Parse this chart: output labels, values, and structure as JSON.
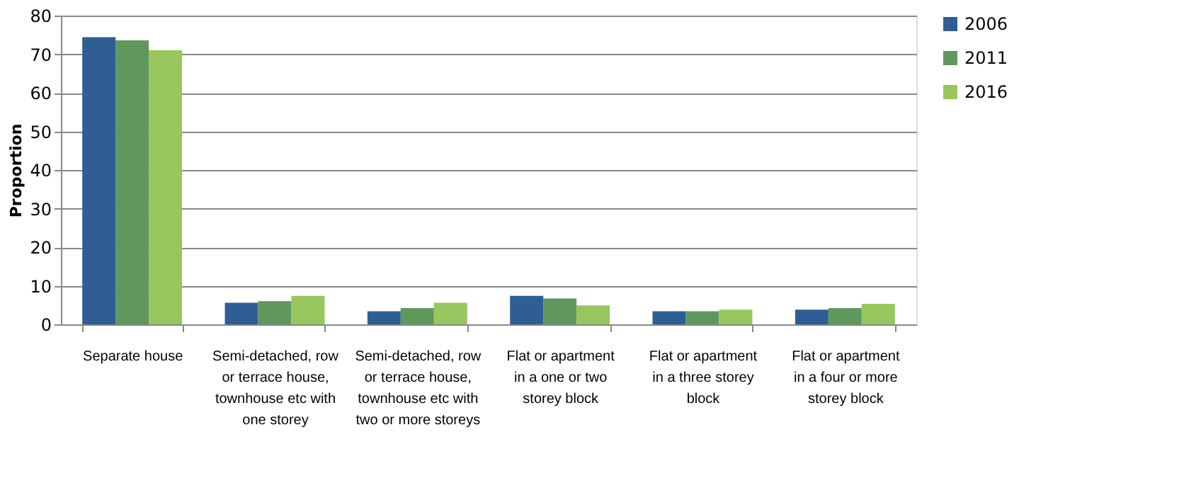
{
  "chart_data": {
    "type": "bar",
    "ylabel": "Proportion",
    "categories": [
      "Separate house",
      "Semi-detached, row or terrace house, townhouse etc with one storey",
      "Semi-detached, row or terrace house, townhouse etc with two or more storeys",
      "Flat or apartment in a one or two storey block",
      "Flat or apartment in a three storey block",
      "Flat or apartment in a four or more storey block"
    ],
    "series": [
      {
        "name": "2006",
        "color": "#2e5e93",
        "values": [
          74.4,
          5.6,
          3.4,
          7.4,
          3.4,
          3.8
        ]
      },
      {
        "name": "2011",
        "color": "#5f975c",
        "values": [
          73.6,
          6.0,
          4.2,
          6.7,
          3.4,
          4.2
        ]
      },
      {
        "name": "2016",
        "color": "#98c65e",
        "values": [
          71.0,
          7.4,
          5.6,
          4.9,
          3.8,
          5.3
        ]
      }
    ],
    "ylim": [
      0,
      80
    ],
    "yticks": [
      0,
      10,
      20,
      30,
      40,
      50,
      60,
      70,
      80
    ],
    "grid": "y",
    "legend": "right"
  }
}
